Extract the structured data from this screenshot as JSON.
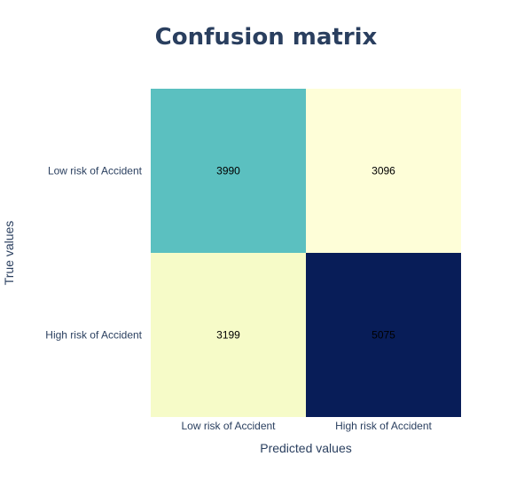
{
  "chart_data": {
    "type": "heatmap",
    "title": "Confusion matrix",
    "xlabel": "Predicted values",
    "ylabel": "True values",
    "x_categories": [
      "Low risk of Accident",
      "High risk of Accident"
    ],
    "y_categories": [
      "Low risk of Accident",
      "High risk of Accident"
    ],
    "z": [
      [
        3990,
        3096
      ],
      [
        3199,
        5075
      ]
    ],
    "colorscale": "YlGnBu",
    "colors": {
      "title": "#2a3f5f",
      "axis_text": "#2a3f5f",
      "cell_text": "#000000",
      "background": "#ffffff"
    },
    "cell_colors": [
      [
        "#5bc0c0",
        "#fefed8"
      ],
      [
        "#f6fbc8",
        "#081d58"
      ]
    ]
  }
}
